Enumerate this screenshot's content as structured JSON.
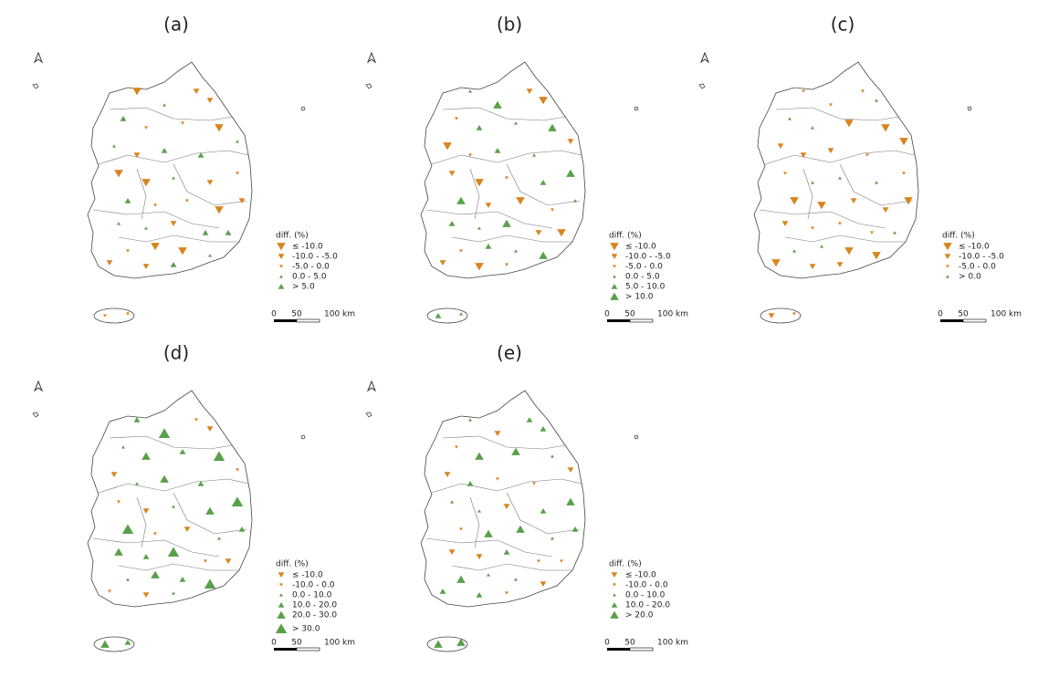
{
  "panels": [
    {
      "label": "(a)",
      "legend": {
        "title": "diff. (%)",
        "items": [
          {
            "label": "≤ -10.0",
            "shape": "down",
            "color": "#d9841f"
          },
          {
            "label": "-10.0 - -5.0",
            "shape": "down",
            "color": "#d9841f"
          },
          {
            "label": "-5.0 - 0.0",
            "shape": "down",
            "color": "#d9841f"
          },
          {
            "label": "0.0 - 5.0",
            "shape": "up",
            "color": "#5aa04a"
          },
          {
            "label": "> 5.0",
            "shape": "up",
            "color": "#5aa04a"
          }
        ]
      },
      "scale": [
        "0",
        "50",
        "100 km"
      ]
    },
    {
      "label": "(b)",
      "legend": {
        "title": "diff. (%)",
        "items": [
          {
            "label": "≤ -10.0",
            "shape": "down",
            "color": "#d9841f"
          },
          {
            "label": "-10.0 - -5.0",
            "shape": "down",
            "color": "#d9841f"
          },
          {
            "label": "-5.0 - 0.0",
            "shape": "down",
            "color": "#d9841f"
          },
          {
            "label": "0.0 - 5.0",
            "shape": "up",
            "color": "#5aa04a"
          },
          {
            "label": "5.0 - 10.0",
            "shape": "up",
            "color": "#5aa04a"
          },
          {
            "label": "> 10.0",
            "shape": "up",
            "color": "#5aa04a"
          }
        ]
      },
      "scale": [
        "0",
        "50",
        "100 km"
      ]
    },
    {
      "label": "(c)",
      "legend": {
        "title": "diff. (%)",
        "items": [
          {
            "label": "≤ -10.0",
            "shape": "down",
            "color": "#d9841f"
          },
          {
            "label": "-10.0 - -5.0",
            "shape": "down",
            "color": "#d9841f"
          },
          {
            "label": "-5.0 - 0.0",
            "shape": "down",
            "color": "#d9841f"
          },
          {
            "label": "> 0.0",
            "shape": "up",
            "color": "#5aa04a"
          }
        ]
      },
      "scale": [
        "0",
        "50",
        "100 km"
      ]
    },
    {
      "label": "(d)",
      "legend": {
        "title": "diff. (%)",
        "items": [
          {
            "label": "≤ -10.0",
            "shape": "down",
            "color": "#d9841f"
          },
          {
            "label": "-10.0 - 0.0",
            "shape": "down",
            "color": "#d9841f"
          },
          {
            "label": "0.0 - 10.0",
            "shape": "up",
            "color": "#5aa04a"
          },
          {
            "label": "10.0 - 20.0",
            "shape": "up",
            "color": "#5aa04a"
          },
          {
            "label": "20.0 - 30.0",
            "shape": "up",
            "color": "#5aa04a"
          },
          {
            "label": "> 30.0",
            "shape": "up",
            "color": "#5aa04a"
          }
        ]
      },
      "scale": [
        "0",
        "50",
        "100 km"
      ]
    },
    {
      "label": "(e)",
      "legend": {
        "title": "diff. (%)",
        "items": [
          {
            "label": "≤ -10.0",
            "shape": "down",
            "color": "#d9841f"
          },
          {
            "label": "-10.0 - 0.0",
            "shape": "down",
            "color": "#d9841f"
          },
          {
            "label": "0.0 - 10.0",
            "shape": "up",
            "color": "#5aa04a"
          },
          {
            "label": "10.0 - 20.0",
            "shape": "up",
            "color": "#5aa04a"
          },
          {
            "label": "> 20.0",
            "shape": "up",
            "color": "#5aa04a"
          }
        ]
      },
      "scale": [
        "0",
        "50",
        "100 km"
      ]
    }
  ]
}
